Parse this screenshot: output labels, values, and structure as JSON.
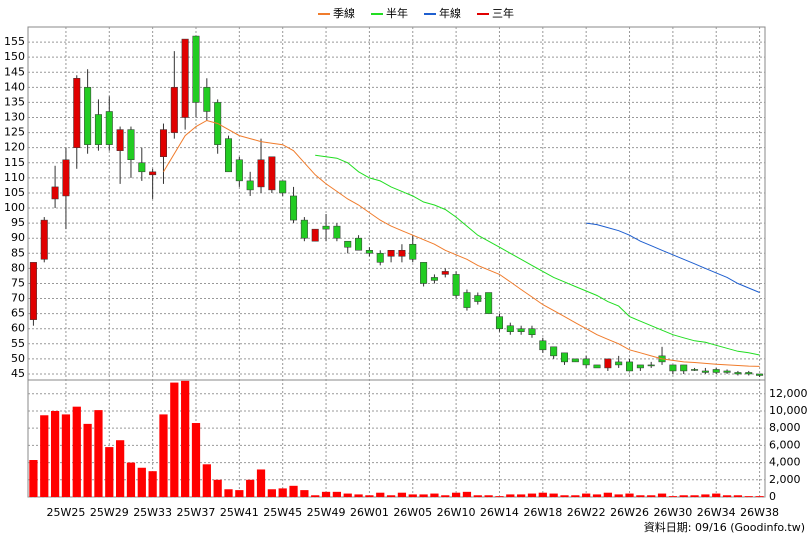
{
  "chart_data": {
    "type": "candlestick",
    "categories": [
      null,
      null,
      null,
      "25W25",
      null,
      null,
      null,
      "25W29",
      null,
      null,
      null,
      "25W33",
      null,
      null,
      null,
      "25W37",
      null,
      null,
      null,
      "25W41",
      null,
      null,
      null,
      "25W45",
      null,
      null,
      null,
      "25W49",
      null,
      null,
      null,
      "26W01",
      null,
      null,
      null,
      "26W05",
      null,
      null,
      null,
      "26W10",
      null,
      null,
      null,
      "26W14",
      null,
      null,
      null,
      "26W18",
      null,
      null,
      null,
      "26W22",
      null,
      null,
      null,
      "26W26",
      null,
      null,
      null,
      "26W30",
      null,
      null,
      null,
      "26W34",
      null,
      null,
      null,
      "26W38"
    ],
    "open": [
      63,
      83,
      103,
      104,
      120,
      140,
      131,
      132,
      119,
      126,
      115,
      111,
      117,
      125,
      130,
      157,
      140,
      135,
      123,
      116,
      109,
      107,
      106,
      109,
      104,
      96,
      89,
      94,
      94,
      89,
      90,
      86,
      85,
      84,
      84,
      88,
      82,
      77,
      78,
      78,
      72,
      71,
      72,
      64,
      61,
      60,
      60,
      56,
      54,
      52,
      50,
      50,
      48,
      47,
      49,
      49,
      48,
      48,
      51,
      48,
      48,
      46.5,
      46,
      46.5,
      46,
      45.5,
      45.5,
      45
    ],
    "high": [
      82,
      97,
      114,
      120,
      144,
      146,
      136,
      137,
      127,
      127,
      120,
      113,
      128,
      152,
      156,
      157,
      143,
      136,
      124,
      117,
      112,
      123,
      117,
      109,
      107,
      97,
      93,
      98,
      95,
      89,
      91,
      87,
      86,
      86,
      88,
      91,
      82,
      78,
      80,
      79,
      73,
      72,
      72,
      65,
      62,
      61,
      61,
      57,
      54,
      52,
      50,
      51,
      48,
      50,
      51,
      50,
      48,
      49,
      54,
      48,
      48,
      47,
      47,
      47,
      46.5,
      46,
      46,
      45
    ],
    "low": [
      61,
      82,
      100,
      93,
      113,
      118,
      119,
      119,
      108,
      110,
      109,
      103,
      108,
      123,
      126,
      130,
      129,
      118,
      112,
      107,
      104,
      105,
      105,
      104,
      95,
      89,
      89,
      89,
      89,
      85,
      86,
      84,
      81,
      82,
      82,
      82,
      74,
      75,
      77,
      70,
      66,
      68,
      65,
      59,
      58,
      58,
      57,
      52,
      50,
      48,
      49,
      47,
      47,
      46,
      47,
      46,
      46,
      47,
      48,
      45,
      45,
      46,
      45,
      45,
      45,
      44.5,
      44.5,
      44
    ],
    "close": [
      82,
      96,
      107,
      116,
      143,
      121,
      121,
      121,
      126,
      116,
      112,
      112,
      126,
      140,
      156,
      135,
      132,
      121,
      112,
      109,
      106,
      116,
      117,
      105,
      96,
      90,
      93,
      93,
      90,
      87,
      86,
      85,
      82,
      86,
      86,
      83,
      75,
      76,
      79,
      71,
      67,
      69,
      65,
      60,
      59,
      59,
      58,
      53,
      51,
      49,
      49,
      48,
      47,
      50,
      48,
      46,
      47,
      48,
      49,
      46,
      46,
      46.5,
      45.5,
      45.5,
      45.5,
      45,
      45,
      44.5
    ],
    "up_color": "#e00000",
    "down_color": "#22cc22",
    "ylim": [
      43,
      160
    ],
    "yticks": [
      45,
      50,
      55,
      60,
      65,
      70,
      75,
      80,
      85,
      90,
      95,
      100,
      105,
      110,
      115,
      120,
      125,
      130,
      135,
      140,
      145,
      150,
      155
    ],
    "grid": true,
    "series": [
      {
        "name": "季線",
        "color": "#f07c2c",
        "values": [
          null,
          null,
          null,
          null,
          null,
          null,
          null,
          null,
          null,
          null,
          null,
          null,
          112,
          118,
          124,
          127,
          129,
          128,
          126,
          124,
          123,
          122,
          121.5,
          121,
          119,
          115,
          111,
          108,
          105.5,
          103,
          101,
          98.5,
          96,
          94,
          92.5,
          91,
          89.5,
          88,
          86,
          84.5,
          83,
          81,
          79.5,
          78,
          75.5,
          73,
          70.5,
          68,
          66,
          64,
          62,
          60,
          58,
          56.5,
          55,
          53,
          52,
          51,
          50,
          49.5,
          49,
          48.8,
          48.5,
          48.2,
          48,
          47.8,
          47.6,
          47.5
        ]
      },
      {
        "name": "半年",
        "color": "#22dd22",
        "values": [
          null,
          null,
          null,
          null,
          null,
          null,
          null,
          null,
          null,
          null,
          null,
          null,
          null,
          null,
          null,
          null,
          null,
          null,
          null,
          null,
          null,
          null,
          null,
          null,
          null,
          null,
          117.5,
          117,
          116.5,
          115,
          112,
          110,
          109,
          107,
          105.5,
          104,
          102,
          101,
          99.5,
          97,
          94,
          91,
          89,
          87,
          85,
          83,
          81,
          79,
          77,
          75.5,
          74,
          72.5,
          71,
          69,
          67.5,
          64,
          62.5,
          61,
          59.5,
          58,
          57,
          56,
          55.5,
          54.5,
          53.5,
          52.5,
          52,
          51.3
        ]
      },
      {
        "name": "年線",
        "color": "#1f5fcf",
        "values": [
          null,
          null,
          null,
          null,
          null,
          null,
          null,
          null,
          null,
          null,
          null,
          null,
          null,
          null,
          null,
          null,
          null,
          null,
          null,
          null,
          null,
          null,
          null,
          null,
          null,
          null,
          null,
          null,
          null,
          null,
          null,
          null,
          null,
          null,
          null,
          null,
          null,
          null,
          null,
          null,
          null,
          null,
          null,
          null,
          null,
          null,
          null,
          null,
          null,
          null,
          null,
          95,
          94.5,
          93.5,
          92.5,
          91,
          89,
          87.5,
          86,
          84.5,
          83,
          81.5,
          80,
          78.5,
          77,
          75,
          73.5,
          72
        ]
      },
      {
        "name": "三年",
        "color": "#e00000",
        "values": [
          null,
          null,
          null,
          null,
          null,
          null,
          null,
          null,
          null,
          null,
          null,
          null,
          null,
          null,
          null,
          null,
          null,
          null,
          null,
          null,
          null,
          null,
          null,
          null,
          null,
          null,
          null,
          null,
          null,
          null,
          null,
          null,
          null,
          null,
          null,
          null,
          null,
          null,
          null,
          null,
          null,
          null,
          null,
          null,
          null,
          null,
          null,
          null,
          null,
          null,
          null,
          null,
          null,
          null,
          null,
          null,
          null,
          null,
          null,
          null,
          null,
          null,
          null,
          null,
          null,
          null,
          null,
          null
        ]
      }
    ],
    "volume": {
      "color": "#ff0000",
      "values": [
        4300,
        9500,
        10000,
        9600,
        10500,
        8500,
        10100,
        5800,
        6600,
        4000,
        3400,
        3000,
        9600,
        13300,
        13500,
        8600,
        3800,
        2000,
        900,
        800,
        2000,
        3200,
        900,
        1000,
        1300,
        800,
        200,
        600,
        600,
        400,
        300,
        200,
        500,
        200,
        500,
        300,
        300,
        400,
        200,
        500,
        600,
        200,
        200,
        100,
        300,
        300,
        400,
        500,
        400,
        200,
        200,
        400,
        300,
        500,
        300,
        400,
        200,
        200,
        400,
        100,
        200,
        200,
        300,
        400,
        200,
        200,
        100,
        100
      ],
      "ylim": [
        0,
        13600
      ],
      "yticks": [
        0,
        {
          "value": 2000,
          "label": "2,000"
        },
        {
          "value": 4000,
          "label": "4,000"
        },
        {
          "value": 6000,
          "label": "6,000"
        },
        {
          "value": 8000,
          "label": "8,000"
        },
        {
          "value": 10000,
          "label": "10,000"
        },
        {
          "value": 12000,
          "label": "12,000"
        }
      ]
    },
    "source": "資料日期: 09/16 (Goodinfo.tw)"
  }
}
